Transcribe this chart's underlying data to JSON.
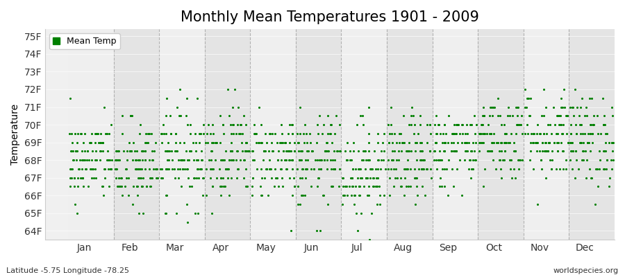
{
  "title": "Monthly Mean Temperatures 1901 - 2009",
  "ylabel": "Temperature",
  "xlabel_labels": [
    "Jan",
    "Feb",
    "Mar",
    "Apr",
    "May",
    "Jun",
    "Jul",
    "Aug",
    "Sep",
    "Oct",
    "Nov",
    "Dec"
  ],
  "ylim": [
    63.5,
    75.4
  ],
  "ytick_labels": [
    "64F",
    "65F",
    "66F",
    "67F",
    "68F",
    "69F",
    "70F",
    "71F",
    "72F",
    "73F",
    "74F",
    "75F"
  ],
  "ytick_values": [
    64,
    65,
    66,
    67,
    68,
    69,
    70,
    71,
    72,
    73,
    74,
    75
  ],
  "dot_color": "#008000",
  "background_color": "#f0f0f0",
  "band_color_light": "#f0f0f0",
  "band_color_dark": "#e0e0e0",
  "grid_color": "#999999",
  "title_fontsize": 15,
  "axis_fontsize": 10,
  "legend_label": "Mean Temp",
  "bottom_left_text": "Latitude -5.75 Longitude -78.25",
  "bottom_right_text": "worldspecies.org",
  "num_years": 109,
  "monthly_means": [
    68.0,
    67.6,
    68.3,
    68.5,
    68.2,
    67.9,
    67.5,
    68.0,
    68.7,
    69.3,
    69.4,
    69.1
  ],
  "monthly_stds": [
    1.2,
    1.3,
    1.4,
    1.3,
    1.2,
    1.3,
    1.4,
    1.2,
    1.1,
    1.2,
    1.3,
    1.3
  ],
  "seed": 42,
  "dot_size": 5
}
